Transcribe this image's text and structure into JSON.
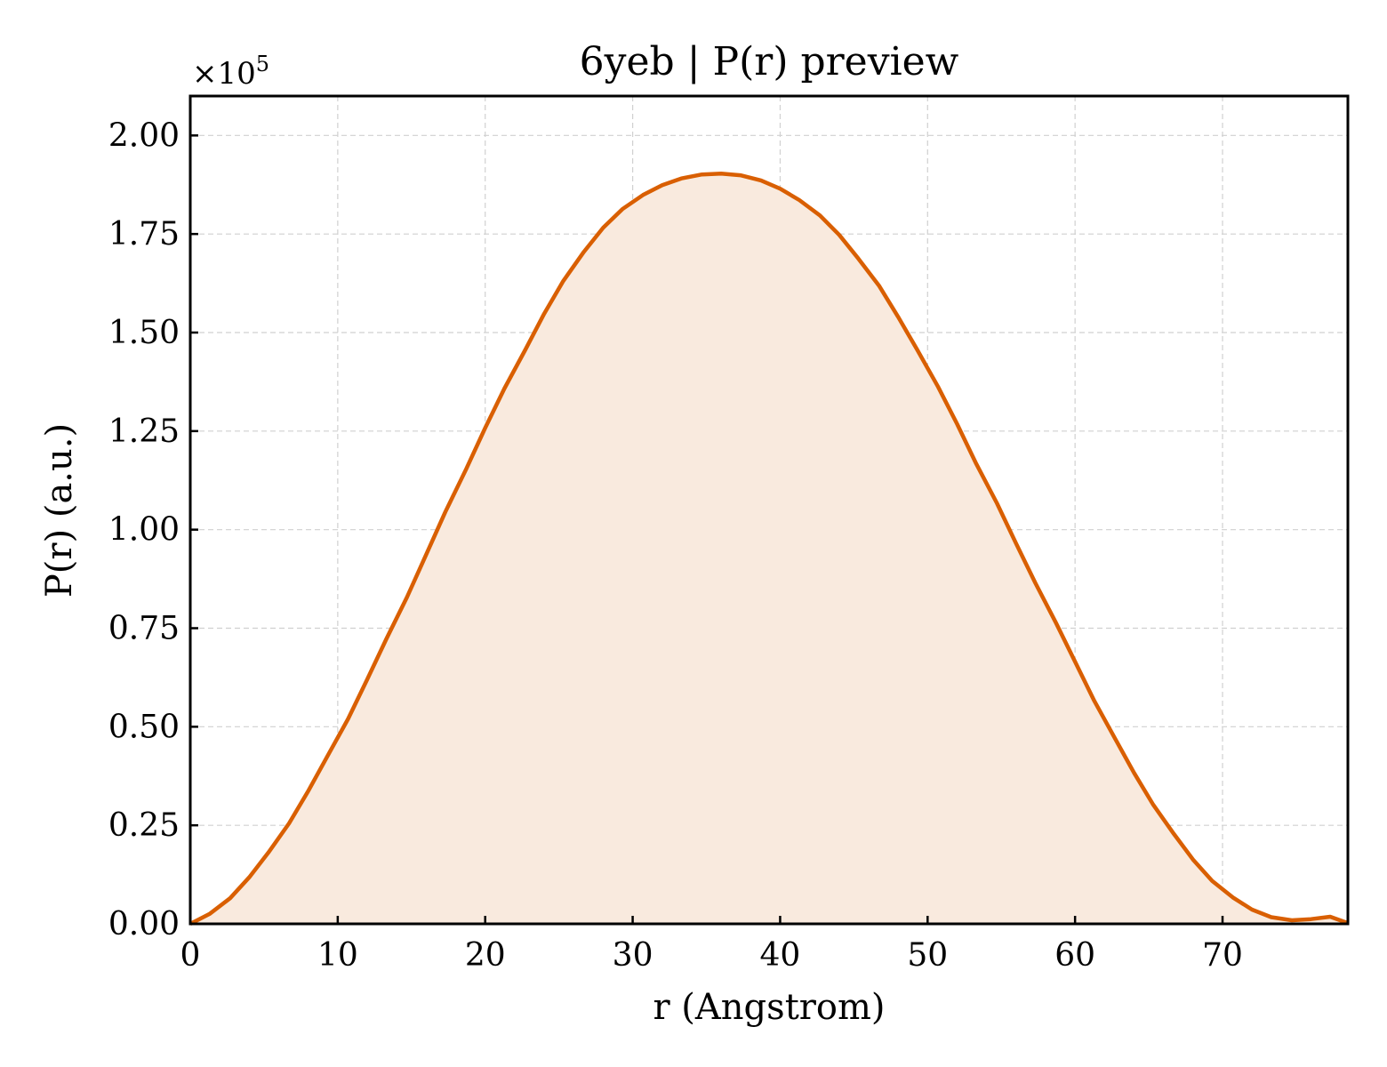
{
  "chart_data": {
    "type": "area",
    "title": "6yeb | P(r) preview",
    "xlabel": "r (Angstrom)",
    "ylabel": "P(r) (a.u.)",
    "y_offset_label": "×10",
    "y_offset_exponent": "5",
    "xlim": [
      0,
      78.5
    ],
    "ylim": [
      0,
      2.1
    ],
    "x_ticks": [
      0,
      10,
      20,
      30,
      40,
      50,
      60,
      70
    ],
    "x_tick_labels": [
      "0",
      "10",
      "20",
      "30",
      "40",
      "50",
      "60",
      "70"
    ],
    "y_ticks": [
      0,
      0.25,
      0.5,
      0.75,
      1.0,
      1.25,
      1.5,
      1.75,
      2.0
    ],
    "y_tick_labels": [
      "0.00",
      "0.25",
      "0.50",
      "0.75",
      "1.00",
      "1.25",
      "1.50",
      "1.75",
      "2.00"
    ],
    "grid": true,
    "line_color": "#d95f02",
    "fill_color": "#f9eade",
    "series": [
      {
        "x": [
          0,
          1.3,
          2.7,
          4.0,
          5.3,
          6.7,
          8.0,
          9.3,
          10.7,
          12.0,
          13.3,
          14.7,
          16.0,
          17.3,
          18.7,
          20.0,
          21.3,
          22.7,
          24.0,
          25.3,
          26.7,
          28.0,
          29.3,
          30.7,
          32.0,
          33.3,
          34.7,
          36.0,
          37.3,
          38.7,
          40.0,
          41.3,
          42.7,
          44.0,
          45.3,
          46.7,
          48.0,
          49.3,
          50.7,
          52.0,
          53.3,
          54.7,
          56.0,
          57.3,
          58.7,
          60.0,
          61.3,
          62.7,
          64.0,
          65.3,
          66.7,
          68.0,
          69.3,
          70.7,
          72.0,
          73.3,
          74.7,
          76.0,
          77.3,
          78.5
        ],
        "y": [
          0,
          0.025,
          0.065,
          0.118,
          0.181,
          0.255,
          0.337,
          0.425,
          0.52,
          0.62,
          0.723,
          0.829,
          0.937,
          1.045,
          1.153,
          1.258,
          1.358,
          1.455,
          1.548,
          1.631,
          1.705,
          1.766,
          1.813,
          1.849,
          1.874,
          1.891,
          1.901,
          1.903,
          1.899,
          1.886,
          1.865,
          1.836,
          1.797,
          1.748,
          1.688,
          1.619,
          1.54,
          1.456,
          1.363,
          1.268,
          1.167,
          1.067,
          0.965,
          0.865,
          0.764,
          0.665,
          0.566,
          0.471,
          0.383,
          0.302,
          0.228,
          0.163,
          0.109,
          0.067,
          0.036,
          0.017,
          0.009,
          0.012,
          0.018,
          0.002
        ]
      }
    ]
  }
}
